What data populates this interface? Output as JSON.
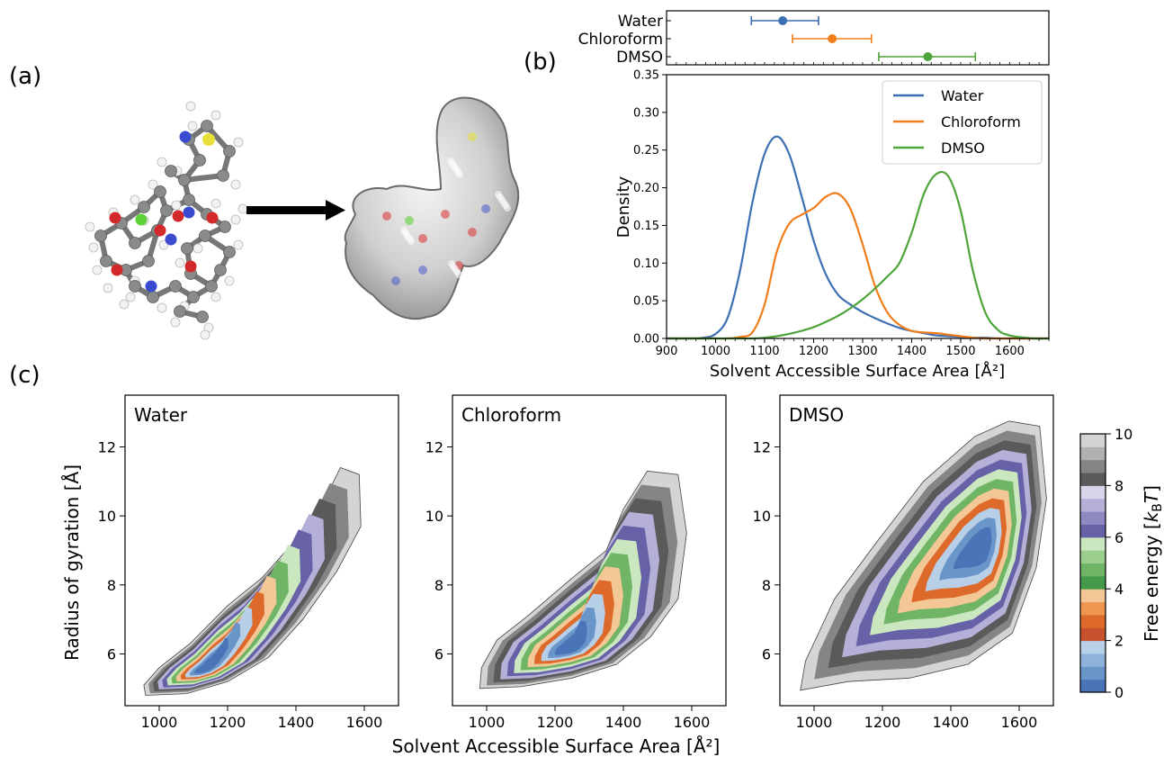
{
  "panel_labels": {
    "a": "(a)",
    "b": "(b)",
    "c": "(c)"
  },
  "colors": {
    "water": "#3c6fb4",
    "chloroform": "#f07d1a",
    "dmso": "#4ea43a",
    "atom_carbon": "#8a8a8a",
    "atom_hydrogen": "#f2f2f2",
    "atom_oxygen": "#d22a2a",
    "atom_nitrogen": "#3b4bd0",
    "atom_sulfur": "#e6e03a",
    "atom_chlorine": "#5fd23a"
  },
  "icons": {
    "arrow": "right-arrow-icon"
  },
  "chart_data": [
    {
      "type": "scatter",
      "panel": "b-top",
      "description_kind": "mean-with-error-bars",
      "categories": [
        "Water",
        "Chloroform",
        "DMSO"
      ],
      "x_mean": [
        1137,
        1238,
        1433
      ],
      "x_low": [
        1073,
        1157,
        1333
      ],
      "x_high": [
        1210,
        1318,
        1530
      ],
      "xlim": [
        900,
        1680
      ]
    },
    {
      "type": "line",
      "panel": "b",
      "xlabel": "Solvent Accessible Surface Area [Å²]",
      "ylabel": "Density",
      "xlim": [
        900,
        1680
      ],
      "ylim": [
        0,
        0.35
      ],
      "xticks": [
        "900",
        "1000",
        "1100",
        "1200",
        "1300",
        "1400",
        "1500",
        "1600"
      ],
      "yticks": [
        "0.00",
        "0.05",
        "0.10",
        "0.15",
        "0.20",
        "0.25",
        "0.30",
        "0.35"
      ],
      "legend": "top-right",
      "grid": false,
      "x": [
        900,
        950,
        975,
        1000,
        1025,
        1050,
        1075,
        1100,
        1125,
        1150,
        1175,
        1200,
        1225,
        1250,
        1275,
        1300,
        1325,
        1350,
        1375,
        1400,
        1425,
        1450,
        1475,
        1500,
        1525,
        1550,
        1575,
        1600,
        1650,
        1680
      ],
      "series": [
        {
          "name": "Water",
          "values": [
            0.0,
            0.0,
            0.001,
            0.006,
            0.028,
            0.09,
            0.18,
            0.245,
            0.268,
            0.245,
            0.19,
            0.13,
            0.085,
            0.058,
            0.045,
            0.035,
            0.027,
            0.02,
            0.014,
            0.01,
            0.007,
            0.004,
            0.003,
            0.002,
            0.001,
            0.001,
            0.0,
            0.0,
            0.0,
            0.0
          ]
        },
        {
          "name": "Chloroform",
          "values": [
            0.0,
            0.0,
            0.0,
            0.0,
            0.0,
            0.002,
            0.008,
            0.045,
            0.115,
            0.152,
            0.164,
            0.173,
            0.188,
            0.192,
            0.172,
            0.125,
            0.07,
            0.035,
            0.018,
            0.01,
            0.008,
            0.007,
            0.005,
            0.003,
            0.001,
            0.0,
            0.0,
            0.0,
            0.0,
            0.0
          ]
        },
        {
          "name": "DMSO",
          "values": [
            0.0,
            0.0,
            0.0,
            0.0,
            0.0,
            0.0,
            0.0,
            0.001,
            0.003,
            0.006,
            0.01,
            0.015,
            0.022,
            0.03,
            0.04,
            0.052,
            0.066,
            0.082,
            0.1,
            0.14,
            0.192,
            0.218,
            0.215,
            0.17,
            0.09,
            0.035,
            0.012,
            0.004,
            0.0,
            0.0
          ]
        }
      ]
    },
    {
      "type": "heatmap",
      "panel": "c",
      "xlabel": "Solvent Accessible Surface Area [Å²]",
      "ylabel": "Radius of gyration [Å]",
      "xlim": [
        900,
        1700
      ],
      "ylim": [
        4.5,
        13.5
      ],
      "xticks": [
        "1000",
        "1200",
        "1400",
        "1600"
      ],
      "yticks": [
        "6",
        "8",
        "10",
        "12"
      ],
      "colorbar": {
        "label": "Free energy [",
        "label_tail": "]",
        "range": [
          0,
          10
        ],
        "ticks": [
          "0",
          "2",
          "4",
          "6",
          "8",
          "10"
        ],
        "levels": [
          "#4a74b8",
          "#6995c9",
          "#8db3da",
          "#b8cfe8",
          "#c8512d",
          "#dd6a2a",
          "#ef9650",
          "#f4c796",
          "#439a4a",
          "#6fb565",
          "#9ccf8e",
          "#cbe7bf",
          "#6761a8",
          "#8f89c2",
          "#b4b0d8",
          "#d6d5ea",
          "#5a5a5a",
          "#858585",
          "#b1b1b1",
          "#d4d4d4"
        ]
      },
      "panels": [
        {
          "title": "Water",
          "envelope": [
            [
              960,
              4.8
            ],
            [
              1080,
              4.85
            ],
            [
              1200,
              5.2
            ],
            [
              1320,
              5.9
            ],
            [
              1420,
              7.0
            ],
            [
              1520,
              8.4
            ],
            [
              1590,
              9.7
            ],
            [
              1585,
              11.2
            ],
            [
              1530,
              11.4
            ],
            [
              1470,
              10.2
            ],
            [
              1390,
              9.2
            ],
            [
              1300,
              8.2
            ],
            [
              1200,
              7.4
            ],
            [
              1090,
              6.3
            ],
            [
              1000,
              5.6
            ],
            [
              955,
              5.1
            ]
          ],
          "minimum": [
            1130,
            5.55
          ],
          "spread": [
            0.95,
            0.82,
            0.68,
            0.52,
            0.37,
            0.2
          ]
        },
        {
          "title": "Chloroform",
          "envelope": [
            [
              980,
              5.0
            ],
            [
              1100,
              5.05
            ],
            [
              1250,
              5.3
            ],
            [
              1380,
              5.7
            ],
            [
              1480,
              6.5
            ],
            [
              1560,
              7.6
            ],
            [
              1585,
              9.5
            ],
            [
              1560,
              11.2
            ],
            [
              1470,
              11.3
            ],
            [
              1400,
              10.2
            ],
            [
              1350,
              9.0
            ],
            [
              1250,
              8.2
            ],
            [
              1120,
              7.1
            ],
            [
              1030,
              6.4
            ],
            [
              985,
              5.6
            ]
          ],
          "minimum": [
            1240,
            6.15
          ],
          "spread": [
            0.95,
            0.85,
            0.72,
            0.56,
            0.4,
            0.22
          ]
        },
        {
          "title": "DMSO",
          "envelope": [
            [
              960,
              4.95
            ],
            [
              1100,
              5.2
            ],
            [
              1280,
              5.3
            ],
            [
              1450,
              5.7
            ],
            [
              1580,
              6.6
            ],
            [
              1650,
              8.5
            ],
            [
              1680,
              10.5
            ],
            [
              1660,
              12.6
            ],
            [
              1570,
              12.75
            ],
            [
              1470,
              12.3
            ],
            [
              1320,
              11.0
            ],
            [
              1180,
              9.2
            ],
            [
              1060,
              7.6
            ],
            [
              975,
              5.8
            ]
          ],
          "minimum": [
            1490,
            9.1
          ],
          "spread": [
            0.95,
            0.86,
            0.76,
            0.62,
            0.45,
            0.25
          ]
        }
      ]
    }
  ]
}
